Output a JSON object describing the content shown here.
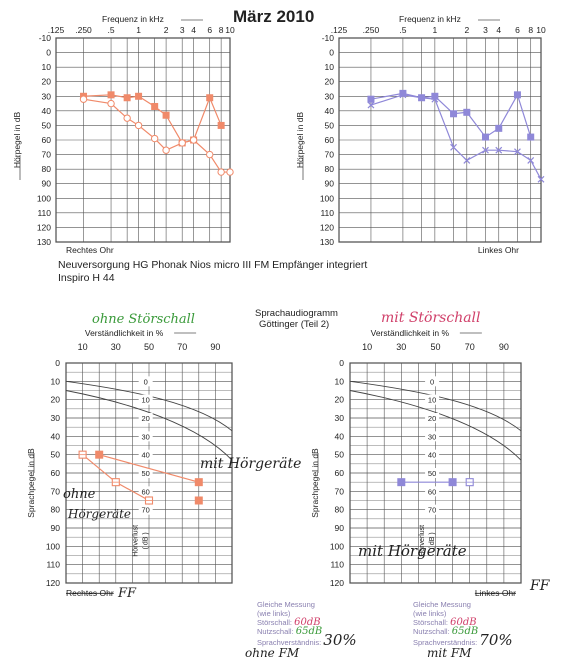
{
  "page": {
    "title": "März 2010",
    "device_line": "Neuversorgung HG    Phonak Nios  micro III  FM Empfänger integriert",
    "device_line2": "Inspiro H 44",
    "speech_title": "Sprachaudiogramm",
    "speech_subtitle": "Göttinger (Teil 2)"
  },
  "colors": {
    "right": "#f08a6a",
    "left": "#8f88d8",
    "grid": "#555555",
    "green": "#3a9a3a",
    "pink": "#d0406a"
  },
  "chart_data": [
    {
      "id": "right-pure-tone",
      "type": "line",
      "title": "",
      "xlabel": "Frequenz in kHz",
      "ylabel": "Hörpegel in dB",
      "footer": "Rechtes Ohr",
      "x_ticks": [
        ".125",
        ".250",
        ".5",
        "1",
        "2",
        "3",
        "4",
        "6",
        "8",
        "10"
      ],
      "y_ticks": [
        "-10",
        "0",
        "10",
        "20",
        "30",
        "40",
        "50",
        "60",
        "70",
        "80",
        "90",
        "100",
        "110",
        "120",
        "130"
      ],
      "ylim": [
        -10,
        130
      ],
      "x_scale": "log",
      "series": [
        {
          "kind": "aided",
          "marker": "square",
          "x": [
            0.25,
            0.5,
            0.75,
            1,
            1.5,
            2,
            3,
            4,
            6,
            8
          ],
          "y": [
            30,
            29,
            31,
            30,
            37,
            43,
            62,
            60,
            31,
            50
          ]
        },
        {
          "kind": "unaided",
          "marker": "circle",
          "x": [
            0.25,
            0.5,
            0.75,
            1,
            1.5,
            2,
            3,
            4,
            6,
            8,
            10
          ],
          "y": [
            32,
            35,
            45,
            50,
            59,
            67,
            62,
            60,
            70,
            82,
            82
          ]
        }
      ]
    },
    {
      "id": "left-pure-tone",
      "type": "line",
      "title": "",
      "xlabel": "Frequenz in kHz",
      "ylabel": "Hörpegel in dB",
      "footer": "Linkes Ohr",
      "x_ticks": [
        ".125",
        ".250",
        ".5",
        "1",
        "2",
        "3",
        "4",
        "6",
        "8",
        "10"
      ],
      "y_ticks": [
        "-10",
        "0",
        "10",
        "20",
        "30",
        "40",
        "50",
        "60",
        "70",
        "80",
        "90",
        "100",
        "110",
        "120",
        "130"
      ],
      "ylim": [
        -10,
        130
      ],
      "x_scale": "log",
      "series": [
        {
          "kind": "aided",
          "marker": "square",
          "x": [
            0.25,
            0.5,
            0.75,
            1,
            1.5,
            2,
            3,
            4,
            6,
            8
          ],
          "y": [
            32,
            28,
            31,
            30,
            42,
            41,
            58,
            52,
            29,
            58
          ]
        },
        {
          "kind": "unaided",
          "marker": "x",
          "x": [
            0.25,
            0.5,
            0.75,
            1,
            1.5,
            2,
            3,
            4,
            6,
            8,
            10
          ],
          "y": [
            36,
            29,
            31,
            32,
            65,
            74,
            67,
            67,
            68,
            74,
            87
          ]
        }
      ]
    },
    {
      "id": "right-speech",
      "type": "scatter",
      "xlabel": "Verständlichkeit in %",
      "ylabel": "Sprachpegel in dB",
      "x_ticks": [
        "10",
        "30",
        "50",
        "70",
        "90"
      ],
      "y_ticks": [
        "0",
        "10",
        "20",
        "30",
        "40",
        "50",
        "60",
        "70",
        "80",
        "90",
        "100",
        "110",
        "120"
      ],
      "ylim": [
        0,
        120
      ],
      "inner_scale": [
        "0",
        "10",
        "20",
        "30",
        "40",
        "50",
        "60",
        "70"
      ],
      "inner_label": "Hörverlust",
      "inner_unit": "( dB )",
      "footer": "Rechtes Ohr",
      "series": [
        {
          "kind": "unaided",
          "marker": "open-square",
          "x": [
            10,
            30,
            50
          ],
          "y": [
            50,
            65,
            75
          ]
        },
        {
          "kind": "aided",
          "marker": "square",
          "x": [
            20,
            80
          ],
          "y": [
            50,
            65
          ]
        },
        {
          "kind": "aided-extra",
          "marker": "square",
          "x": [
            80
          ],
          "y": [
            75
          ]
        }
      ]
    },
    {
      "id": "left-speech",
      "type": "scatter",
      "xlabel": "Verständlichkeit in %",
      "ylabel": "Sprachpegel in dB",
      "x_ticks": [
        "10",
        "30",
        "50",
        "70",
        "90"
      ],
      "y_ticks": [
        "0",
        "10",
        "20",
        "30",
        "40",
        "50",
        "60",
        "70",
        "80",
        "90",
        "100",
        "110",
        "120"
      ],
      "ylim": [
        0,
        120
      ],
      "inner_scale": [
        "0",
        "10",
        "20",
        "30",
        "40",
        "50",
        "60",
        "70"
      ],
      "inner_label": "Hörverlust",
      "inner_unit": "( dB )",
      "footer": "Linkes Ohr",
      "series": [
        {
          "kind": "aided",
          "marker": "square",
          "x": [
            30,
            60
          ],
          "y": [
            65,
            65
          ]
        },
        {
          "kind": "aided-open",
          "marker": "open-square",
          "x": [
            70
          ],
          "y": [
            65
          ]
        }
      ]
    }
  ],
  "handwriting": {
    "right_top": "ohne Störschall",
    "left_top": "mit Störschall",
    "right_mit": "mit Hörgeräte",
    "right_ohne_1": "ohne",
    "right_ohne_2": "Hörgeräte",
    "left_mit": "mit Hörgeräte",
    "ff_right": "FF",
    "ff_left": "FF",
    "bottom_left": "ohne FM",
    "bottom_right": "mit FM"
  },
  "stamps": [
    {
      "l1": "Gleiche Messung",
      "l2": "(wie links)",
      "s_label": "Störschall:",
      "s_val": "60dB",
      "n_label": "Nutzschall:",
      "n_val": "65dB",
      "v_label": "Sprachverständnis:",
      "v_val": "30%"
    },
    {
      "l1": "Gleiche Messung",
      "l2": "(wie links)",
      "s_label": "Störschall:",
      "s_val": "60dB",
      "n_label": "Nutzschall:",
      "n_val": "65dB",
      "v_label": "Sprachverständnis:",
      "v_val": "70%"
    }
  ]
}
